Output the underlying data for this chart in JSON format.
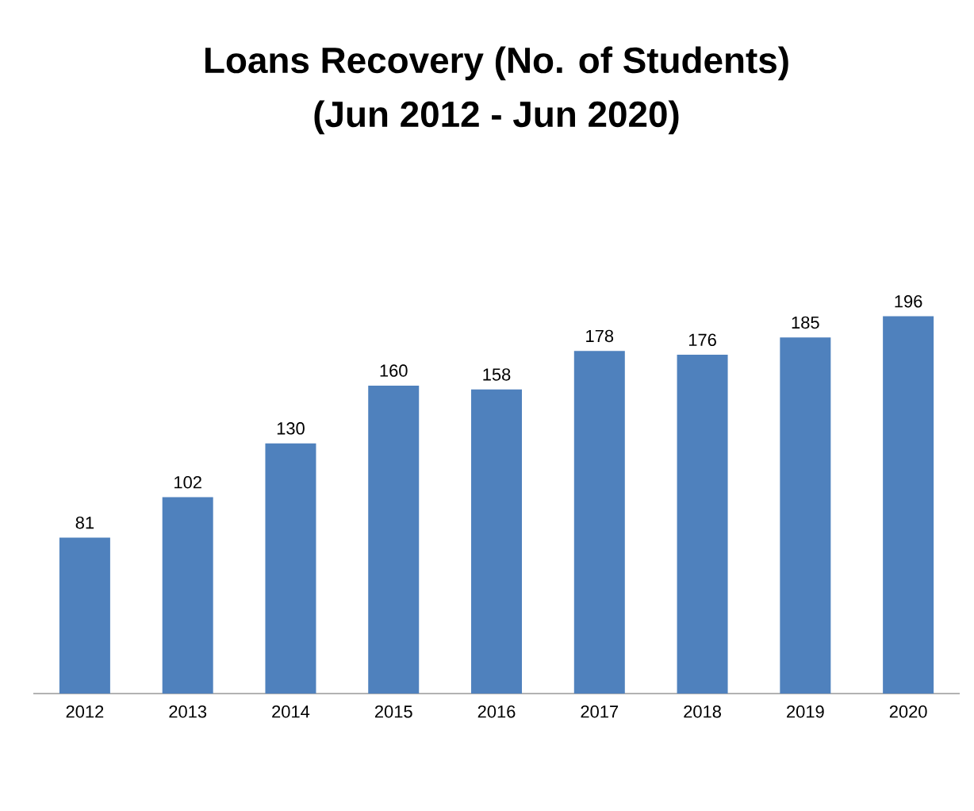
{
  "chart_data": {
    "type": "bar",
    "title": "Loans Recovery (No. of Students)",
    "subtitle": "(Jun 2012 - Jun 2020)",
    "categories": [
      "2012",
      "2013",
      "2014",
      "2015",
      "2016",
      "2017",
      "2018",
      "2019",
      "2020"
    ],
    "values": [
      81,
      102,
      130,
      160,
      158,
      178,
      176,
      185,
      196
    ],
    "color": "#4f81bd",
    "data_labels": true
  }
}
